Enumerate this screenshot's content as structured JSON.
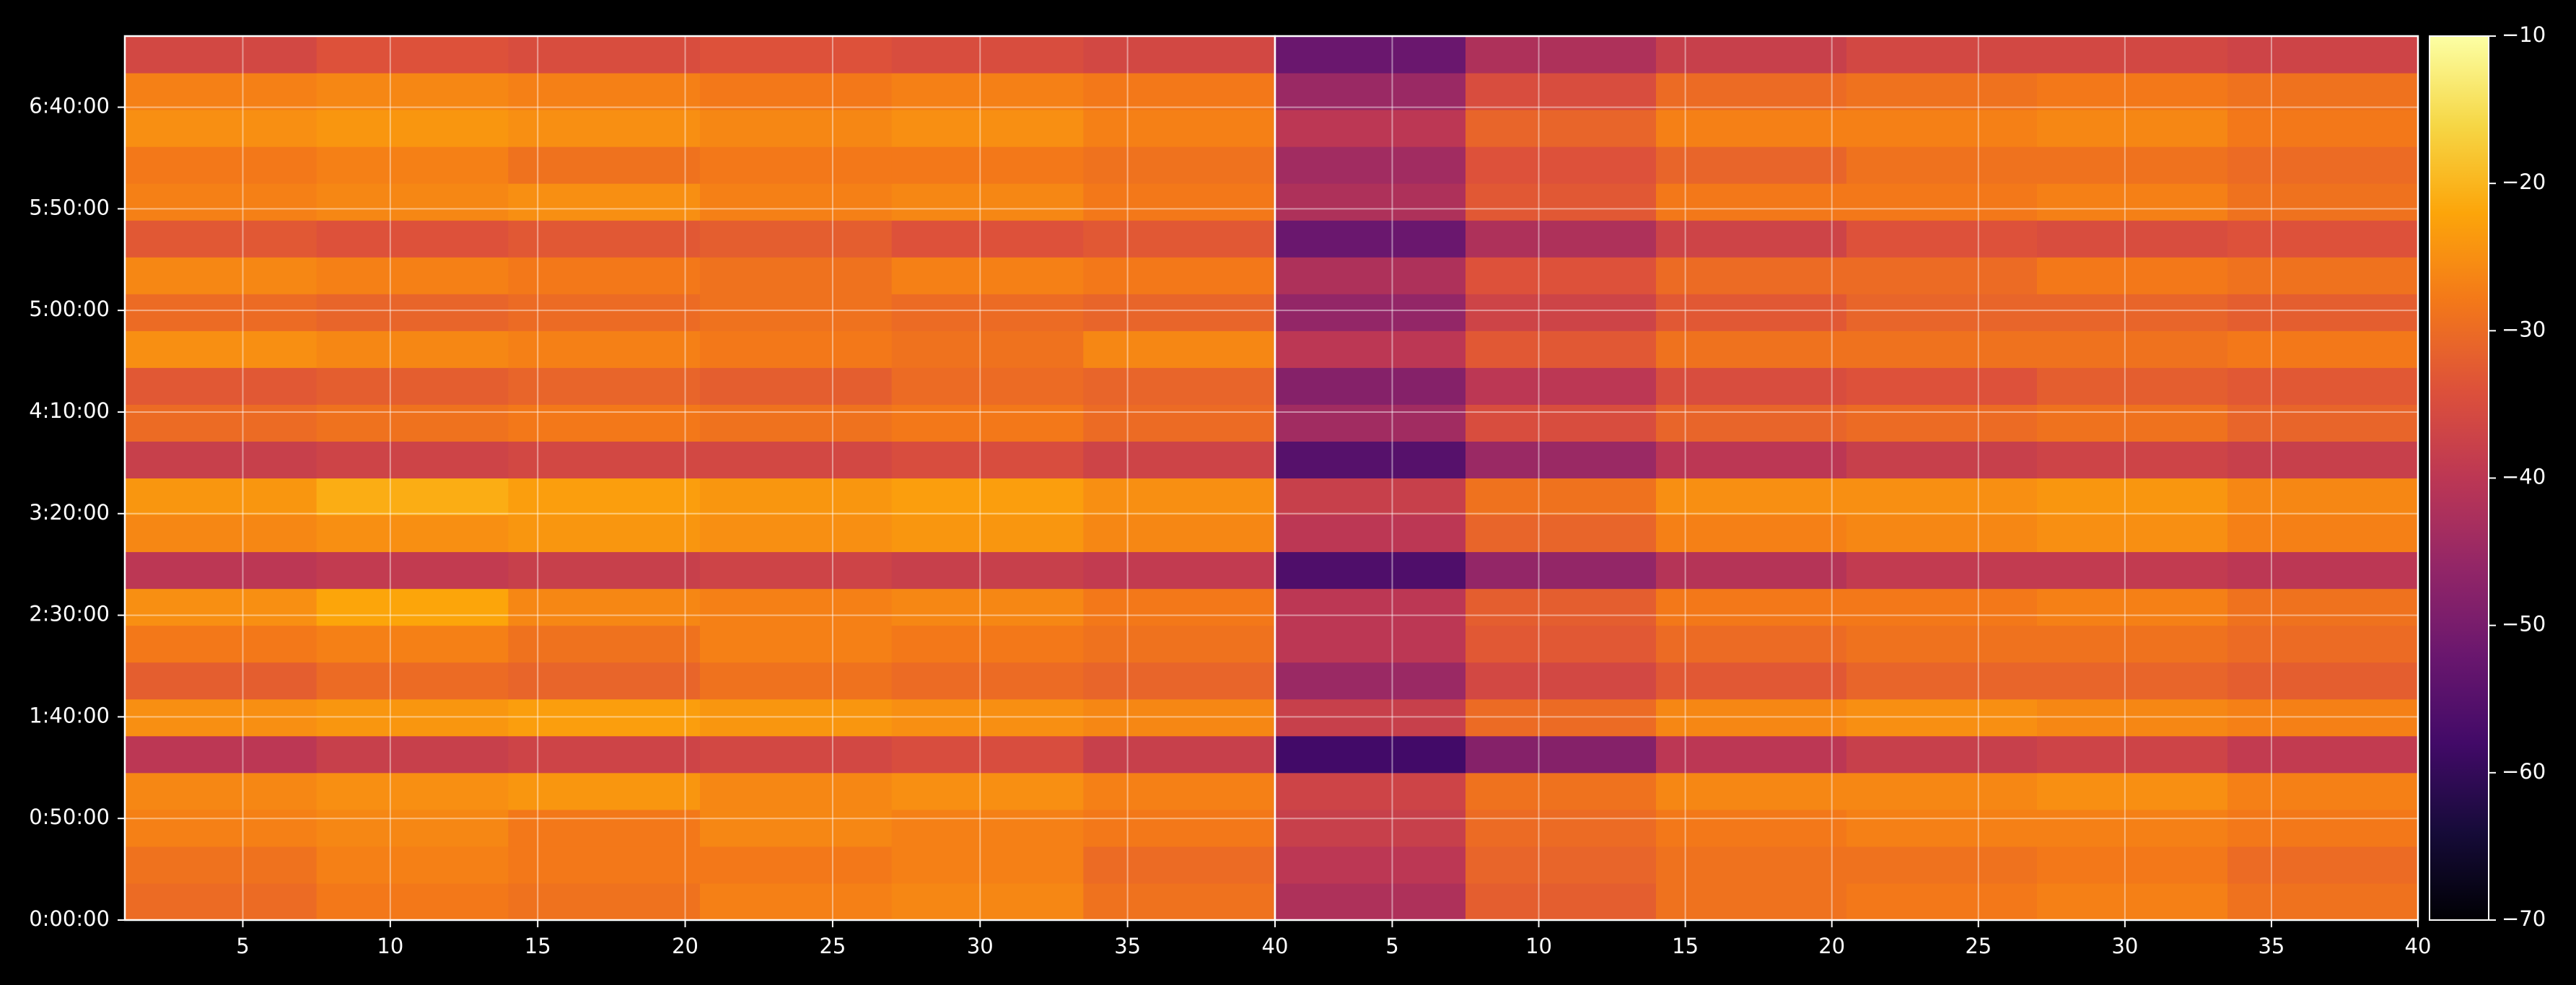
{
  "chart_data": {
    "type": "heatmap",
    "colormap": "inferno",
    "grid": true,
    "xlim": [
      1,
      40
    ],
    "xticks": [
      5,
      10,
      15,
      20,
      25,
      30,
      35,
      40
    ],
    "ylim": [
      0,
      26100
    ],
    "yticks": [
      {
        "value": 0,
        "label": "0:00:00"
      },
      {
        "value": 3000,
        "label": "0:50:00"
      },
      {
        "value": 6000,
        "label": "1:40:00"
      },
      {
        "value": 9000,
        "label": "2:30:00"
      },
      {
        "value": 12000,
        "label": "3:20:00"
      },
      {
        "value": 15000,
        "label": "4:10:00"
      },
      {
        "value": 18000,
        "label": "5:00:00"
      },
      {
        "value": 21000,
        "label": "5:50:00"
      },
      {
        "value": 24000,
        "label": "6:40:00"
      }
    ],
    "colorbar": {
      "zlim": [
        -70,
        -10
      ],
      "zticks": [
        {
          "value": -70,
          "label": "−70"
        },
        {
          "value": -60,
          "label": "−60"
        },
        {
          "value": -50,
          "label": "−50"
        },
        {
          "value": -40,
          "label": "−40"
        },
        {
          "value": -30,
          "label": "−30"
        },
        {
          "value": -20,
          "label": "−20"
        },
        {
          "value": -10,
          "label": "−10"
        }
      ]
    },
    "panels": [
      {
        "values": [
          [
            -30,
            -28,
            -29,
            -27,
            -26,
            -29
          ],
          [
            -29,
            -27,
            -28,
            -28,
            -27,
            -30
          ],
          [
            -27,
            -26,
            -28,
            -26,
            -27,
            -28
          ],
          [
            -26,
            -25,
            -24,
            -26,
            -25,
            -27
          ],
          [
            -40,
            -38,
            -37,
            -36,
            -35,
            -38
          ],
          [
            -25,
            -24,
            -23,
            -24,
            -25,
            -26
          ],
          [
            -32,
            -30,
            -31,
            -29,
            -30,
            -31
          ],
          [
            -28,
            -27,
            -29,
            -27,
            -28,
            -29
          ],
          [
            -25,
            -22,
            -26,
            -27,
            -26,
            -28
          ],
          [
            -40,
            -39,
            -38,
            -37,
            -38,
            -39
          ],
          [
            -26,
            -25,
            -24,
            -25,
            -24,
            -26
          ],
          [
            -24,
            -21,
            -23,
            -24,
            -23,
            -25
          ],
          [
            -38,
            -37,
            -36,
            -36,
            -35,
            -37
          ],
          [
            -30,
            -29,
            -28,
            -29,
            -28,
            -30
          ],
          [
            -33,
            -32,
            -31,
            -32,
            -30,
            -31
          ],
          [
            -25,
            -26,
            -27,
            -28,
            -29,
            -26
          ],
          [
            -30,
            -31,
            -30,
            -29,
            -30,
            -31
          ],
          [
            -26,
            -27,
            -28,
            -29,
            -27,
            -28
          ],
          [
            -33,
            -34,
            -33,
            -32,
            -34,
            -33
          ],
          [
            -27,
            -26,
            -25,
            -27,
            -26,
            -28
          ],
          [
            -28,
            -27,
            -29,
            -28,
            -28,
            -29
          ],
          [
            -25,
            -24,
            -25,
            -26,
            -25,
            -27
          ],
          [
            -27,
            -26,
            -27,
            -28,
            -27,
            -28
          ],
          [
            -36,
            -34,
            -35,
            -34,
            -35,
            -36
          ]
        ]
      },
      {
        "values": [
          [
            -42,
            -32,
            -29,
            -28,
            -27,
            -29
          ],
          [
            -40,
            -31,
            -29,
            -29,
            -28,
            -30
          ],
          [
            -38,
            -30,
            -28,
            -27,
            -27,
            -28
          ],
          [
            -37,
            -29,
            -26,
            -26,
            -25,
            -27
          ],
          [
            -58,
            -48,
            -40,
            -38,
            -37,
            -39
          ],
          [
            -38,
            -30,
            -26,
            -25,
            -26,
            -27
          ],
          [
            -45,
            -36,
            -33,
            -31,
            -31,
            -32
          ],
          [
            -40,
            -33,
            -30,
            -29,
            -29,
            -30
          ],
          [
            -40,
            -32,
            -28,
            -28,
            -27,
            -29
          ],
          [
            -56,
            -46,
            -41,
            -39,
            -39,
            -40
          ],
          [
            -40,
            -31,
            -27,
            -26,
            -25,
            -27
          ],
          [
            -38,
            -29,
            -25,
            -25,
            -24,
            -26
          ],
          [
            -55,
            -45,
            -40,
            -38,
            -37,
            -38
          ],
          [
            -44,
            -35,
            -31,
            -30,
            -29,
            -31
          ],
          [
            -48,
            -40,
            -35,
            -34,
            -32,
            -33
          ],
          [
            -40,
            -33,
            -29,
            -29,
            -29,
            -28
          ],
          [
            -46,
            -37,
            -33,
            -31,
            -31,
            -32
          ],
          [
            -42,
            -34,
            -30,
            -30,
            -28,
            -29
          ],
          [
            -52,
            -42,
            -37,
            -34,
            -35,
            -34
          ],
          [
            -42,
            -33,
            -28,
            -28,
            -27,
            -29
          ],
          [
            -44,
            -34,
            -31,
            -29,
            -29,
            -30
          ],
          [
            -40,
            -31,
            -27,
            -27,
            -26,
            -28
          ],
          [
            -45,
            -35,
            -30,
            -29,
            -28,
            -29
          ],
          [
            -52,
            -42,
            -38,
            -36,
            -36,
            -37
          ]
        ]
      }
    ]
  }
}
